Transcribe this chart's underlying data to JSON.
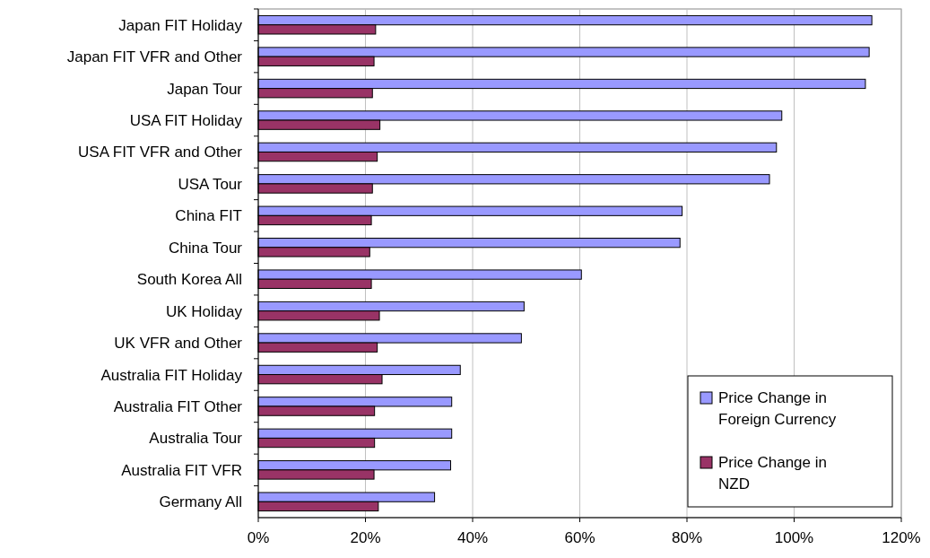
{
  "chart_data": {
    "type": "bar",
    "orientation": "horizontal",
    "categories": [
      "Japan FIT Holiday",
      "Japan FIT VFR and Other",
      "Japan Tour",
      "USA FIT Holiday",
      "USA FIT VFR and Other",
      "USA Tour",
      "China FIT",
      "China Tour",
      "South Korea All",
      "UK Holiday",
      "UK VFR and Other",
      "Australia FIT Holiday",
      "Australia FIT Other",
      "Australia Tour",
      "Australia FIT VFR",
      "Germany All"
    ],
    "series": [
      {
        "name": "Price Change in Foreign Currency",
        "color": "#9999ff",
        "values": [
          114.5,
          114.0,
          113.3,
          97.7,
          96.7,
          95.4,
          79.1,
          78.7,
          60.3,
          49.6,
          49.1,
          37.7,
          36.1,
          36.1,
          35.9,
          32.9
        ]
      },
      {
        "name": "Price Change in NZD",
        "color": "#993366",
        "values": [
          21.9,
          21.6,
          21.3,
          22.7,
          22.2,
          21.3,
          21.1,
          20.8,
          21.1,
          22.6,
          22.2,
          23.1,
          21.7,
          21.7,
          21.6,
          22.4
        ]
      }
    ],
    "xlim": [
      0,
      120
    ],
    "xticks": [
      {
        "value": 0,
        "label": "0%"
      },
      {
        "value": 20,
        "label": "20%"
      },
      {
        "value": 40,
        "label": "40%"
      },
      {
        "value": 60,
        "label": "60%"
      },
      {
        "value": 80,
        "label": "80%"
      },
      {
        "value": 100,
        "label": "100%"
      },
      {
        "value": 120,
        "label": "120%"
      }
    ],
    "grid": "x",
    "legend": "bottom right"
  }
}
